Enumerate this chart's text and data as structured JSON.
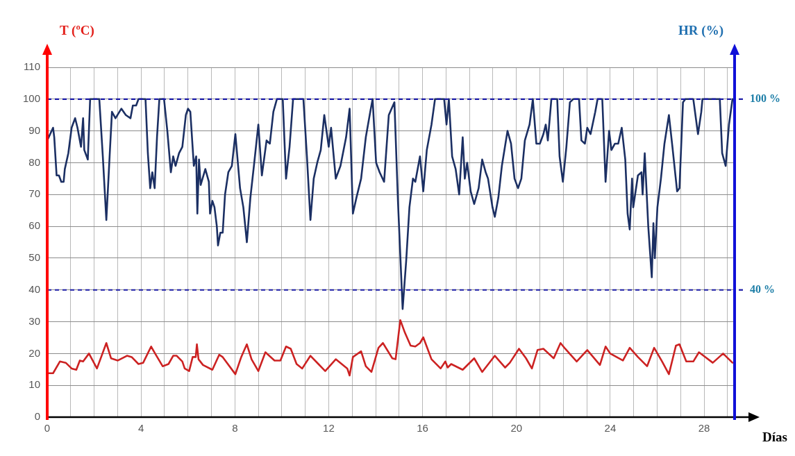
{
  "chart_data": {
    "type": "line",
    "xlabel": "Días",
    "ylabel": "T (ºC)",
    "y2label": "HR (%)",
    "xlim": [
      0,
      29.3
    ],
    "xticks": [
      0,
      {
        "value": 1,
        "label": null
      },
      {
        "value": 2,
        "label": null
      },
      {
        "value": 3,
        "label": null
      },
      4,
      {
        "value": 5,
        "label": null
      },
      {
        "value": 6,
        "label": null
      },
      {
        "value": 7,
        "label": null
      },
      8,
      {
        "value": 9,
        "label": null
      },
      {
        "value": 10,
        "label": null
      },
      {
        "value": 11,
        "label": null
      },
      12,
      {
        "value": 13,
        "label": null
      },
      {
        "value": 14,
        "label": null
      },
      {
        "value": 15,
        "label": null
      },
      16,
      {
        "value": 17,
        "label": null
      },
      {
        "value": 18,
        "label": null
      },
      {
        "value": 19,
        "label": null
      },
      20,
      {
        "value": 21,
        "label": null
      },
      {
        "value": 22,
        "label": null
      },
      {
        "value": 23,
        "label": null
      },
      24,
      {
        "value": 25,
        "label": null
      },
      {
        "value": 26,
        "label": null
      },
      {
        "value": 27,
        "label": null
      },
      28,
      {
        "value": 29,
        "label": null
      }
    ],
    "ylim": [
      0,
      110
    ],
    "yticks": [
      0,
      10,
      20,
      30,
      40,
      50,
      60,
      70,
      80,
      90,
      100,
      110
    ],
    "grid": true,
    "marker": "none",
    "line_style": "solid",
    "ref_lines": [
      {
        "axis": "y",
        "value": 100,
        "label": "100 %",
        "color": "#1a1aa6",
        "line_style": "dashed"
      },
      {
        "axis": "y",
        "value": 40,
        "label": "40 %",
        "color": "#1a1aa6",
        "line_style": "dashed"
      }
    ],
    "series": [
      {
        "color": "#1b2f63",
        "x": [
          0,
          0.25,
          0.3,
          0.4,
          0.5,
          0.6,
          0.7,
          0.75,
          0.9,
          1.04,
          1.19,
          1.29,
          1.44,
          1.53,
          1.58,
          1.73,
          1.83,
          1.88,
          2.22,
          2.37,
          2.52,
          2.66,
          2.76,
          2.91,
          3.16,
          3.35,
          3.55,
          3.65,
          3.79,
          3.89,
          4.19,
          4.29,
          4.39,
          4.48,
          4.58,
          4.68,
          4.78,
          4.98,
          5.12,
          5.27,
          5.37,
          5.47,
          5.62,
          5.76,
          5.91,
          6.0,
          6.1,
          6.25,
          6.35,
          6.4,
          6.47,
          6.54,
          6.74,
          6.89,
          6.94,
          7.04,
          7.13,
          7.23,
          7.28,
          7.38,
          7.48,
          7.58,
          7.72,
          7.87,
          8.02,
          8.22,
          8.36,
          8.51,
          8.66,
          8.81,
          9.0,
          9.15,
          9.35,
          9.49,
          9.64,
          9.79,
          10.04,
          10.18,
          10.33,
          10.48,
          10.58,
          10.92,
          11.07,
          11.22,
          11.36,
          11.51,
          11.66,
          11.81,
          12.0,
          12.1,
          12.3,
          12.5,
          12.74,
          12.89,
          13.03,
          13.18,
          13.38,
          13.58,
          13.77,
          13.87,
          14.02,
          14.17,
          14.36,
          14.56,
          14.8,
          14.95,
          15.15,
          15.3,
          15.44,
          15.59,
          15.69,
          15.89,
          16.03,
          16.18,
          16.38,
          16.53,
          16.92,
          17.02,
          17.12,
          17.26,
          17.41,
          17.56,
          17.71,
          17.8,
          17.9,
          18.05,
          18.2,
          18.39,
          18.54,
          18.69,
          18.79,
          18.98,
          19.08,
          19.23,
          19.38,
          19.62,
          19.77,
          19.92,
          20.07,
          20.21,
          20.36,
          20.56,
          20.7,
          20.85,
          21.0,
          21.15,
          21.25,
          21.34,
          21.49,
          21.74,
          21.84,
          21.98,
          22.13,
          22.28,
          22.42,
          22.67,
          22.77,
          22.92,
          23.02,
          23.16,
          23.36,
          23.46,
          23.66,
          23.8,
          23.95,
          24.05,
          24.2,
          24.34,
          24.49,
          24.64,
          24.74,
          24.83,
          24.93,
          24.98,
          25.18,
          25.33,
          25.38,
          25.47,
          25.62,
          25.77,
          25.84,
          25.9,
          26.01,
          26.16,
          26.31,
          26.5,
          26.65,
          26.85,
          26.95,
          27.1,
          27.2,
          27.54,
          27.74,
          27.88,
          27.93,
          28.67,
          28.77,
          28.92,
          29.06,
          29.21
        ],
        "values": [
          87,
          91,
          88,
          76,
          76,
          74,
          74,
          78,
          83,
          91,
          94,
          91,
          85,
          94,
          84,
          81,
          100,
          100,
          100,
          82,
          62,
          82,
          96,
          94,
          97,
          95,
          94,
          98,
          98,
          100,
          100,
          83,
          72,
          77,
          72,
          88,
          100,
          100,
          90,
          77,
          82,
          79,
          83,
          85,
          95,
          97,
          96,
          79,
          82,
          64,
          81,
          73,
          78,
          74,
          64,
          68,
          66,
          60,
          54,
          58,
          58,
          70,
          77,
          79,
          89,
          72,
          66,
          55,
          69,
          79,
          92,
          76,
          87,
          86,
          96,
          100,
          100,
          75,
          85,
          100,
          100,
          100,
          82,
          62,
          75,
          80,
          84,
          95,
          85,
          91,
          75,
          79,
          88,
          97,
          64,
          69,
          75,
          88,
          96,
          100,
          80,
          77,
          74,
          95,
          99,
          68,
          34,
          49,
          66,
          75,
          74,
          82,
          71,
          84,
          92,
          100,
          100,
          92,
          100,
          82,
          78,
          70,
          88,
          75,
          80,
          71,
          67,
          72,
          81,
          77,
          75,
          66,
          63,
          69,
          79,
          90,
          86,
          75,
          72,
          75,
          87,
          92,
          100,
          86,
          86,
          89,
          92,
          87,
          100,
          100,
          82,
          74,
          85,
          99,
          100,
          100,
          87,
          86,
          91,
          89,
          96,
          100,
          100,
          74,
          90,
          84,
          86,
          86,
          91,
          81,
          64,
          59,
          75,
          66,
          76,
          77,
          70,
          83,
          60,
          44,
          61,
          50,
          66,
          75,
          86,
          95,
          85,
          71,
          72,
          99,
          100,
          100,
          89,
          96,
          100,
          100,
          83,
          79,
          92,
          100
        ]
      },
      {
        "color": "#cc2222",
        "x": [
          0,
          0.25,
          0.54,
          0.79,
          1.04,
          1.24,
          1.39,
          1.53,
          1.78,
          2.12,
          2.52,
          2.72,
          3.01,
          3.4,
          3.6,
          3.89,
          4.09,
          4.43,
          4.63,
          4.92,
          5.17,
          5.37,
          5.52,
          5.76,
          5.86,
          6.05,
          6.2,
          6.33,
          6.38,
          6.45,
          6.64,
          7.04,
          7.33,
          7.48,
          8.02,
          8.27,
          8.51,
          8.71,
          9.0,
          9.3,
          9.69,
          9.94,
          10.18,
          10.38,
          10.63,
          10.87,
          11.22,
          11.56,
          11.85,
          12.3,
          12.79,
          12.89,
          13.03,
          13.38,
          13.58,
          13.82,
          14.12,
          14.31,
          14.71,
          14.85,
          15.05,
          15.25,
          15.49,
          15.69,
          15.89,
          16.03,
          16.38,
          16.77,
          16.97,
          17.07,
          17.22,
          17.71,
          18.2,
          18.54,
          19.08,
          19.52,
          19.72,
          20.11,
          20.41,
          20.66,
          20.9,
          21.15,
          21.59,
          21.88,
          22.08,
          22.57,
          23.02,
          23.56,
          23.8,
          24.0,
          24.54,
          24.83,
          25.18,
          25.57,
          25.87,
          26.21,
          26.5,
          26.8,
          26.95,
          27.24,
          27.54,
          27.78,
          28.37,
          28.81,
          29.21
        ],
        "values": [
          13.8,
          13.8,
          17.5,
          17.1,
          15.3,
          14.9,
          17.8,
          17.5,
          20,
          15.3,
          23.3,
          18.5,
          17.8,
          19.3,
          18.9,
          16.7,
          17.1,
          22.2,
          19.6,
          16,
          16.7,
          19.3,
          19.3,
          17.5,
          15.3,
          14.5,
          18.9,
          18.9,
          22.9,
          18.2,
          16.4,
          14.9,
          19.6,
          18.9,
          13.5,
          18.9,
          22.9,
          18.2,
          14.5,
          20.4,
          17.8,
          17.8,
          22.2,
          21.5,
          16.7,
          15.3,
          19.3,
          16.7,
          14.5,
          18.2,
          15.3,
          13.1,
          18.9,
          20.7,
          16,
          14.2,
          21.8,
          23.3,
          18.5,
          18.2,
          30.5,
          26.5,
          22.5,
          22.2,
          23.3,
          25.1,
          18.2,
          15.3,
          17.5,
          15.6,
          16.7,
          14.9,
          18.5,
          14.2,
          19.3,
          15.6,
          17.1,
          21.5,
          18.5,
          15.3,
          21.1,
          21.5,
          18.5,
          23.3,
          21.5,
          17.5,
          21.1,
          16.4,
          22.2,
          20,
          17.8,
          21.8,
          18.9,
          16,
          21.8,
          17.5,
          13.5,
          22.5,
          22.9,
          17.5,
          17.5,
          20.4,
          17.1,
          20,
          17.1
        ]
      }
    ]
  }
}
